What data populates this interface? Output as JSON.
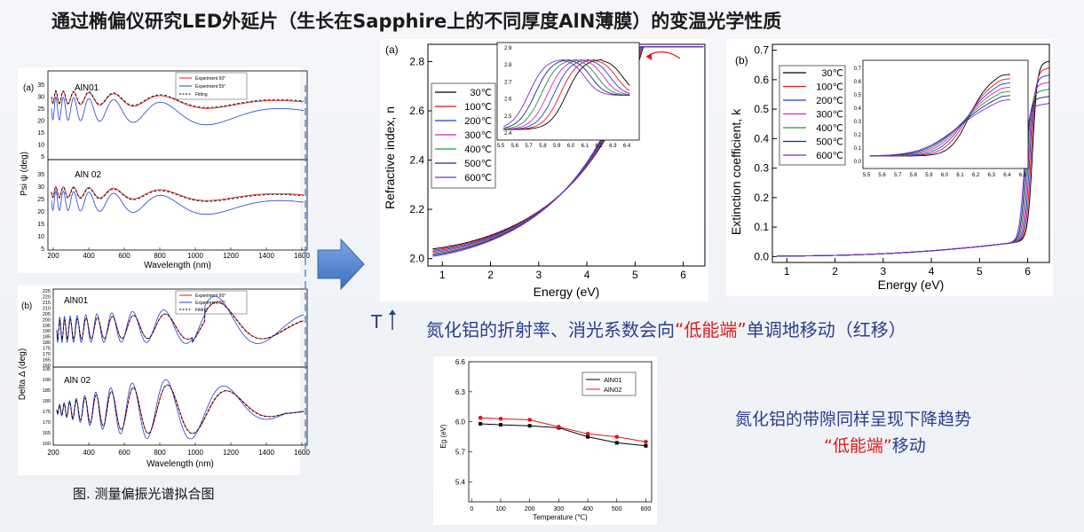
{
  "title": "通过椭偏仪研究LED外延片（生长在Sapphire上的不同厚度AlN薄膜）的变温光学性质",
  "caption": "图. 测量偏振光谱拟合图",
  "conclusion_1": {
    "prefix": "氮化铝的折射率、消光系数会向",
    "highlight": "“低能端”",
    "suffix": "单调地移动（红移）"
  },
  "conclusion_2": {
    "line1": "氮化铝的带隙同样呈现下降趋势",
    "highlight": "“低能端”",
    "suffix": "移动"
  },
  "t_arrow_label": "T",
  "ellipsometry": {
    "panel_a_label": "(a)",
    "panel_b_label": "(b)",
    "psi_ylabel": "Psi ψ (deg)",
    "delta_ylabel": "Delta Δ (deg)",
    "xlabel": "Wavelength (nm)",
    "sample1": "AlN01",
    "sample2": "AlN 02",
    "legend_a": [
      "Experiment 50°",
      "Experiment 55°",
      "Fitting"
    ],
    "legend_b": [
      "Experiment 50°",
      "Experiment 55°",
      "Fitting"
    ],
    "x_ticks": [
      "200",
      "400",
      "600",
      "800",
      "1000",
      "1200",
      "1400",
      "1600"
    ],
    "psi_ticks": [
      "5",
      "10",
      "15",
      "20",
      "25",
      "30",
      "35"
    ],
    "delta_ticks_top": [
      "160",
      "165",
      "170",
      "175",
      "180",
      "185",
      "190",
      "195",
      "200",
      "205",
      "210",
      "215",
      "220",
      "225"
    ],
    "delta_ticks_bottom": [
      "160",
      "165",
      "170",
      "175",
      "180",
      "185",
      "190",
      "195"
    ]
  },
  "temperatures": [
    "30℃",
    "100℃",
    "200℃",
    "300℃",
    "400℃",
    "500℃",
    "600℃"
  ],
  "colors": [
    "#000000",
    "#e8131b",
    "#1f3fd6",
    "#d81fd2",
    "#1a9a2a",
    "#1a2a8a",
    "#7a2ad0"
  ],
  "chart_n": {
    "label": "(a)",
    "xlabel": "Energy (eV)",
    "ylabel": "Refractive index, n",
    "x_ticks": [
      "1",
      "2",
      "3",
      "4",
      "5",
      "6"
    ],
    "y_ticks": [
      "2.0",
      "2.2",
      "2.4",
      "2.6",
      "2.8"
    ],
    "inset_x_ticks": [
      "5.5",
      "5.6",
      "5.7",
      "5.8",
      "5.9",
      "6.0",
      "6.1",
      "6.2",
      "6.3",
      "6.4"
    ],
    "inset_y_ticks": [
      "2.4",
      "2.5",
      "2.6",
      "2.7",
      "2.8",
      "2.9"
    ]
  },
  "chart_k": {
    "label": "(b)",
    "xlabel": "Energy (eV)",
    "ylabel": "Extinction coefficient, k",
    "x_ticks": [
      "1",
      "2",
      "3",
      "4",
      "5",
      "6"
    ],
    "y_ticks": [
      "0.0",
      "0.1",
      "0.2",
      "0.3",
      "0.4",
      "0.5",
      "0.6",
      "0.7"
    ],
    "inset_x_ticks": [
      "5.5",
      "5.6",
      "5.7",
      "5.8",
      "5.9",
      "6.0",
      "6.1",
      "6.2",
      "6.3",
      "6.4",
      "6.5"
    ],
    "inset_y_ticks": [
      "0.0",
      "0.1",
      "0.2",
      "0.3",
      "0.4",
      "0.5",
      "0.6",
      "0.7"
    ]
  },
  "chart_data": {
    "type": "line",
    "x": [
      30,
      100,
      200,
      300,
      400,
      500,
      600
    ],
    "xlabel": "Temperature (℃)",
    "ylabel": "Eg (eV)",
    "ylim": [
      5.2,
      6.6
    ],
    "y_ticks": [
      "5.4",
      "5.7",
      "6.0",
      "6.3",
      "6.6"
    ],
    "x_ticks": [
      "0",
      "100",
      "200",
      "300",
      "400",
      "500",
      "600"
    ],
    "series": [
      {
        "name": "AlN01",
        "color": "#000000",
        "values": [
          5.98,
          5.97,
          5.96,
          5.94,
          5.85,
          5.79,
          5.76
        ]
      },
      {
        "name": "AlN02",
        "color": "#e8131b",
        "values": [
          6.04,
          6.03,
          6.02,
          5.95,
          5.88,
          5.85,
          5.8
        ]
      }
    ]
  }
}
